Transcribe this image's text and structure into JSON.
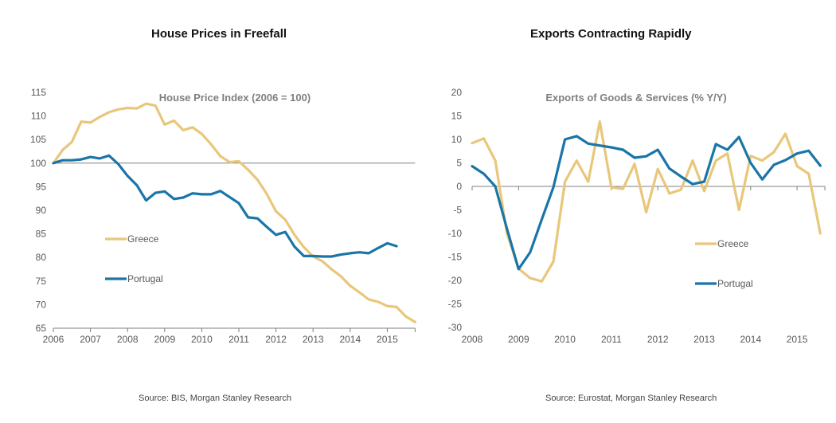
{
  "chart_data": [
    {
      "type": "line",
      "title": "House Prices in Freefall",
      "subtitle": "House Price Index (2006 = 100)",
      "source": "Source: BIS, Morgan Stanley Research",
      "xlabel": "",
      "ylabel": "",
      "xlim": [
        2006,
        2015.75
      ],
      "ylim": [
        65,
        115
      ],
      "yticks": [
        65,
        70,
        75,
        80,
        85,
        90,
        95,
        100,
        105,
        110,
        115
      ],
      "xticks": [
        2006,
        2007,
        2008,
        2009,
        2010,
        2011,
        2012,
        2013,
        2014,
        2015
      ],
      "reference_line": 100,
      "legend_position": "center-left",
      "frequency": "quarterly",
      "series": [
        {
          "name": "Greece",
          "color": "#E8C77A",
          "start": 2006,
          "values": [
            100,
            102.8,
            104.5,
            108.8,
            108.6,
            109.8,
            110.8,
            111.4,
            111.7,
            111.6,
            112.6,
            112.2,
            108.2,
            109,
            107,
            107.6,
            106.2,
            104,
            101.5,
            100.2,
            100.4,
            98.6,
            96.5,
            93.5,
            89.8,
            88,
            84.8,
            82.2,
            80.2,
            79.2,
            77.5,
            76,
            74,
            72.6,
            71.1,
            70.6,
            69.7,
            69.5,
            67.5,
            66.3
          ]
        },
        {
          "name": "Portugal",
          "color": "#1A75A8",
          "start": 2006,
          "values": [
            100,
            100.6,
            100.6,
            100.8,
            101.3,
            101,
            101.6,
            99.8,
            97.3,
            95.3,
            92.1,
            93.7,
            94,
            92.4,
            92.7,
            93.6,
            93.4,
            93.4,
            94.1,
            92.8,
            91.5,
            88.5,
            88.3,
            86.5,
            84.8,
            85.4,
            82.3,
            80.3,
            80.3,
            80.2,
            80.2,
            80.6,
            80.9,
            81.1,
            80.9,
            82,
            83,
            82.4
          ]
        }
      ]
    },
    {
      "type": "line",
      "title": "Exports Contracting Rapidly",
      "subtitle": "Exports of Goods & Services (% Y/Y)",
      "source": "Source: Eurostat, Morgan Stanley Research",
      "xlabel": "",
      "ylabel": "",
      "xlim": [
        2008,
        2015.6
      ],
      "ylim": [
        -30,
        20
      ],
      "yticks": [
        -30,
        -25,
        -20,
        -15,
        -10,
        -5,
        0,
        5,
        10,
        15,
        20
      ],
      "xticks": [
        2008,
        2009,
        2010,
        2011,
        2012,
        2013,
        2014,
        2015
      ],
      "reference_line": 0,
      "legend_position": "bottom-right",
      "frequency": "quarterly",
      "series": [
        {
          "name": "Greece",
          "color": "#E8C77A",
          "start": 2008,
          "values": [
            9.2,
            10.2,
            5.5,
            -10,
            -17.5,
            -19.5,
            -20.2,
            -16,
            1,
            5.5,
            1,
            13.8,
            -0.2,
            -0.5,
            4.8,
            -5.5,
            3.7,
            -1.5,
            -0.7,
            5.5,
            -1,
            5.5,
            7,
            -5,
            6.5,
            5.5,
            7.3,
            11.2,
            4.3,
            2.7,
            -10
          ]
        },
        {
          "name": "Portugal",
          "color": "#1A75A8",
          "start": 2008,
          "values": [
            4.3,
            2.7,
            0,
            -9,
            -17.6,
            -14,
            -7,
            -0.2,
            10,
            10.7,
            9.1,
            8.7,
            8.3,
            7.8,
            6.1,
            6.4,
            7.8,
            3.8,
            2.1,
            0.5,
            1,
            9,
            7.8,
            10.5,
            5,
            1.5,
            4.6,
            5.6,
            7,
            7.6,
            4.4
          ]
        }
      ]
    }
  ]
}
